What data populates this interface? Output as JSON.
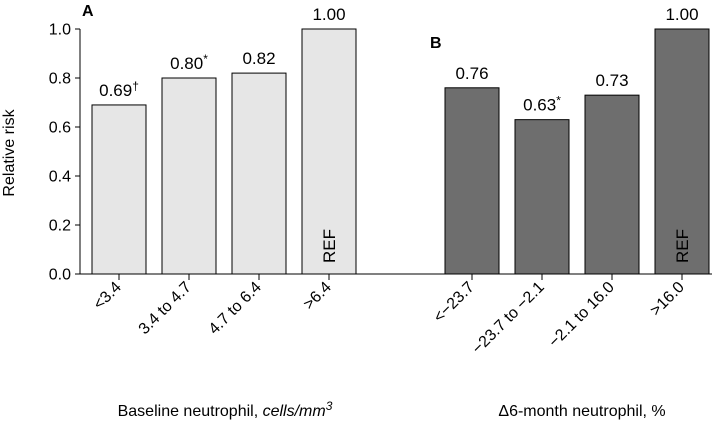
{
  "chart_data": {
    "type": "bar",
    "ylabel": "Relative risk",
    "ylim": [
      0,
      1.0
    ],
    "yticks": [
      "0.0",
      "0.2",
      "0.4",
      "0.6",
      "0.8",
      "1.0"
    ],
    "panels": [
      {
        "panel_label": "A",
        "xlabel_plain": "Baseline neutrophil, ",
        "xlabel_italic": "cells/mm",
        "xlabel_sup": "3",
        "categories": [
          "<3.4",
          "3.4 to 4.7",
          "4.7 to 6.4",
          ">6.4"
        ],
        "values": [
          0.69,
          0.8,
          0.82,
          1.0
        ],
        "data_labels": [
          "0.69",
          "0.80",
          "0.82",
          "1.00"
        ],
        "marks": [
          "†",
          "*",
          "",
          ""
        ],
        "ref_label": "REF",
        "ref_index": 3,
        "bar_color": "#e6e6e6",
        "ref_text_color": "#000000"
      },
      {
        "panel_label": "B",
        "xlabel_plain": "Δ6-month neutrophil, %",
        "xlabel_italic": "",
        "xlabel_sup": "",
        "categories": [
          "<−23.7",
          "−23.7 to −2.1",
          "−2.1 to 16.0",
          ">16.0"
        ],
        "values": [
          0.76,
          0.63,
          0.73,
          1.0
        ],
        "data_labels": [
          "0.76",
          "0.63",
          "0.73",
          "1.00"
        ],
        "marks": [
          "",
          "*",
          "",
          ""
        ],
        "ref_label": "REF",
        "ref_index": 3,
        "bar_color": "#6e6e6e",
        "ref_text_color": "#ffffff"
      }
    ],
    "grid": false,
    "legend": "none"
  }
}
